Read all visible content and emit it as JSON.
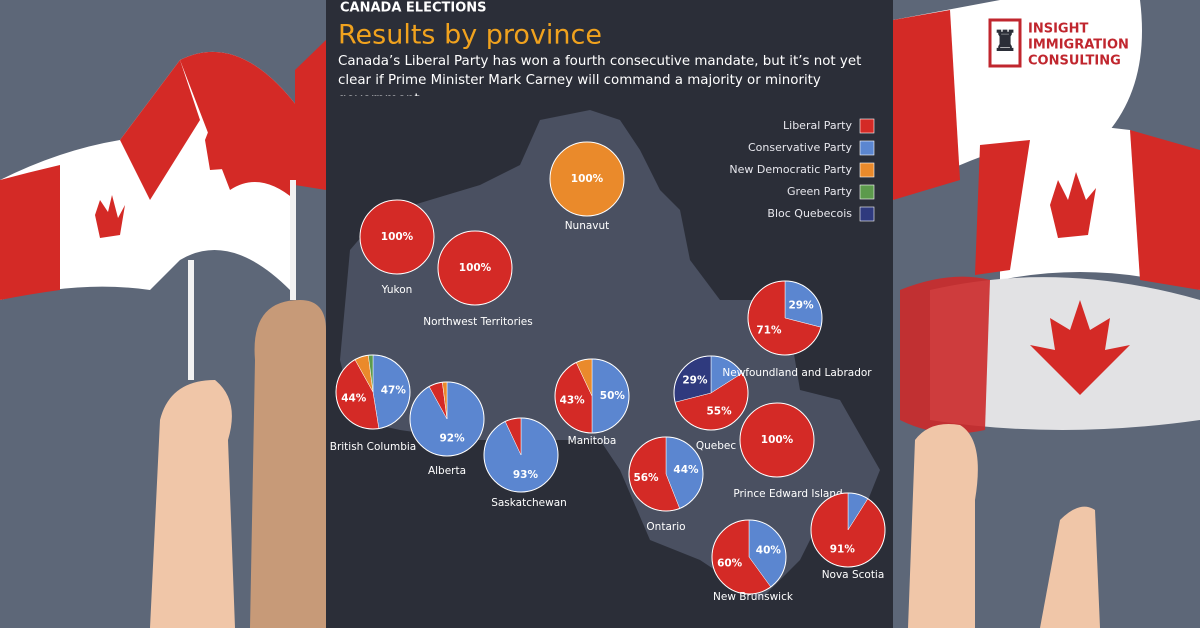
{
  "logo": {
    "line1": "INSIGHT",
    "line2": "IMMIGRATION",
    "line3": "CONSULTING"
  },
  "chart_data": {
    "type": "pie",
    "kicker": "CANADA ELECTIONS",
    "title": "Results by province",
    "subtitle": "Canada’s Liberal Party has won a fourth consecutive mandate, but it’s not yet clear if Prime Minister Mark Carney will command a majority or minority government.",
    "categories": [
      "Nunavut",
      "Yukon",
      "Northwest Territories",
      "British Columbia",
      "Alberta",
      "Saskatchewan",
      "Manitoba",
      "Ontario",
      "Quebec",
      "Newfoundland and Labrador",
      "Prince Edward Island",
      "New Brunswick",
      "Nova Scotia"
    ],
    "series": [
      {
        "name": "Liberal Party",
        "color": "#d42a26",
        "values": [
          null,
          100,
          100,
          44,
          6,
          7,
          43,
          56,
          55,
          71,
          100,
          60,
          91
        ],
        "value_labels": [
          null,
          "100%",
          "100%",
          "44%",
          null,
          null,
          "43%",
          "56%",
          "55%",
          "71%",
          "100%",
          "60%",
          "91%"
        ]
      },
      {
        "name": "Conservative Party",
        "color": "#5b86d0",
        "values": [
          null,
          null,
          null,
          47,
          92,
          93,
          50,
          44,
          16,
          29,
          null,
          40,
          9
        ],
        "value_labels": [
          null,
          null,
          null,
          "47%",
          "92%",
          "93%",
          "50%",
          "44%",
          null,
          "29%",
          null,
          "40%",
          null
        ]
      },
      {
        "name": "New Democratic Party",
        "color": "#ea8a2b",
        "values": [
          100,
          null,
          null,
          6,
          2,
          null,
          7,
          null,
          null,
          null,
          null,
          null,
          null
        ],
        "value_labels": [
          "100%",
          null,
          null,
          null,
          null,
          null,
          null,
          null,
          null,
          null,
          null,
          null,
          null
        ]
      },
      {
        "name": "Green Party",
        "color": "#5c9a4c",
        "values": [
          null,
          null,
          null,
          2,
          null,
          null,
          null,
          null,
          null,
          null,
          null,
          null,
          null
        ],
        "value_labels": [
          null,
          null,
          null,
          null,
          null,
          null,
          null,
          null,
          null,
          null,
          null,
          null,
          null
        ]
      },
      {
        "name": "Bloc Quebecois",
        "color": "#2f3a7e",
        "values": [
          null,
          null,
          null,
          null,
          null,
          null,
          null,
          null,
          29,
          null,
          null,
          null,
          null
        ],
        "value_labels": [
          null,
          null,
          null,
          null,
          null,
          null,
          null,
          null,
          "29%",
          null,
          null,
          null,
          null
        ]
      }
    ]
  }
}
